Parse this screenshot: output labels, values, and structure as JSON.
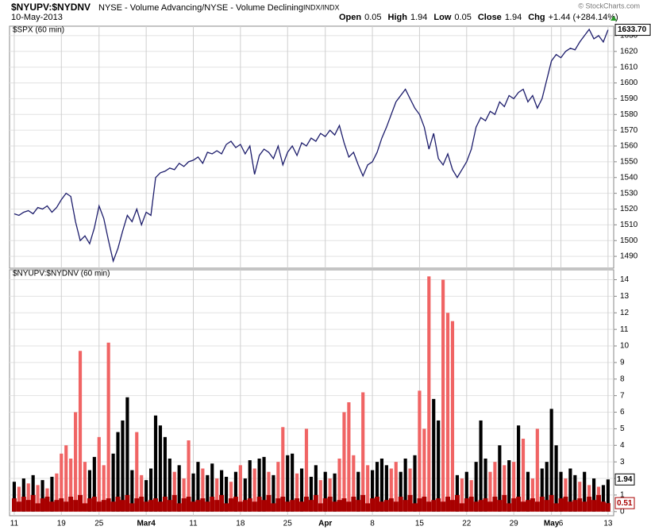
{
  "header": {
    "symbol": "$NYUPV:$NYDNV",
    "description": "NYSE - Volume Advancing/NYSE - Volume Declining",
    "exchange": "INDX/INDX",
    "date": "10-May-2013",
    "source": "© StockCharts.com",
    "quote": [
      {
        "label": "Open",
        "value": "0.05"
      },
      {
        "label": "High",
        "value": "1.94"
      },
      {
        "label": "Low",
        "value": "0.05"
      },
      {
        "label": "Close",
        "value": "1.94"
      },
      {
        "label": "Chg",
        "value": "+1.44 (+284.14%)"
      }
    ]
  },
  "chart_data": [
    {
      "type": "line",
      "title": "$SPX (60 min)",
      "color": "#1c1c6b",
      "last_label": "1633.70",
      "x": [
        0,
        0.5,
        1,
        1.5,
        2,
        2.5,
        3,
        3.5,
        4,
        4.5,
        5,
        5.5,
        6,
        6.5,
        7,
        7.5,
        8,
        8.5,
        9,
        9.5,
        10,
        10.5,
        11,
        11.5,
        12,
        12.5,
        13,
        13.5,
        14,
        14.5,
        15,
        15.5,
        16,
        16.5,
        17,
        17.5,
        18,
        18.5,
        19,
        19.5,
        20,
        20.5,
        21,
        21.5,
        22,
        22.5,
        23,
        23.5,
        24,
        24.5,
        25,
        25.5,
        26,
        26.5,
        27,
        27.5,
        28,
        28.5,
        29,
        29.5,
        30,
        30.5,
        31,
        31.5,
        32,
        32.5,
        33,
        33.5,
        34,
        34.5,
        35,
        35.5,
        36,
        36.5,
        37,
        37.5,
        38,
        38.5,
        39,
        39.5,
        40,
        40.5,
        41,
        41.5,
        42,
        42.5,
        43,
        43.5,
        44,
        44.5,
        45,
        45.5,
        46,
        46.5,
        47,
        47.5,
        48,
        48.5,
        49,
        49.5,
        50,
        50.5,
        51,
        51.5,
        52,
        52.5,
        53,
        53.5,
        54,
        54.5,
        55,
        55.5,
        56,
        56.5,
        57,
        57.5,
        58,
        58.5,
        59,
        59.5,
        60,
        60.5,
        61,
        61.5,
        62,
        62.5,
        63
      ],
      "values": [
        1517,
        1516,
        1518,
        1519,
        1517,
        1521,
        1520,
        1522,
        1518,
        1521,
        1526,
        1530,
        1528,
        1512,
        1500,
        1503,
        1498,
        1508,
        1522,
        1514,
        1500,
        1487,
        1495,
        1506,
        1516,
        1512,
        1520,
        1510,
        1518,
        1516,
        1540,
        1543,
        1544,
        1546,
        1545,
        1549,
        1547,
        1550,
        1551,
        1553,
        1549,
        1556,
        1555,
        1557,
        1555,
        1561,
        1563,
        1559,
        1561,
        1555,
        1560,
        1542,
        1554,
        1558,
        1556,
        1552,
        1560,
        1548,
        1556,
        1560,
        1554,
        1562,
        1560,
        1565,
        1563,
        1568,
        1566,
        1570,
        1567,
        1573,
        1562,
        1553,
        1556,
        1548,
        1541,
        1548,
        1550,
        1556,
        1565,
        1572,
        1580,
        1588,
        1592,
        1596,
        1590,
        1584,
        1580,
        1572,
        1558,
        1568,
        1552,
        1548,
        1555,
        1545,
        1540,
        1545,
        1550,
        1558,
        1572,
        1578,
        1576,
        1582,
        1580,
        1588,
        1585,
        1592,
        1590,
        1594,
        1596,
        1588,
        1592,
        1584,
        1590,
        1602,
        1614,
        1618,
        1616,
        1620,
        1622,
        1621,
        1626,
        1630,
        1634,
        1628,
        1630,
        1626,
        1633.7
      ],
      "xlim": [
        -0.5,
        63.6
      ],
      "ylim": [
        1482.5,
        1636
      ],
      "yticks": [
        1490,
        1500,
        1510,
        1520,
        1530,
        1540,
        1550,
        1560,
        1570,
        1580,
        1590,
        1600,
        1610,
        1620,
        1630
      ],
      "grid": true
    },
    {
      "type": "bar",
      "title": "$NYUPV:$NYDNV (60 min)",
      "palette": {
        "k": "#000000",
        "r": "#f06464"
      },
      "xlim": [
        -0.5,
        63.6
      ],
      "ylim": [
        -0.25,
        14.6
      ],
      "yticks": [
        0,
        1,
        2,
        3,
        4,
        5,
        6,
        7,
        8,
        9,
        10,
        11,
        12,
        13,
        14
      ],
      "grid": true,
      "xticks": [
        {
          "value": 0,
          "label": "11"
        },
        {
          "value": 5,
          "label": "19"
        },
        {
          "value": 9,
          "label": "25"
        },
        {
          "value": 14,
          "label": "Mar4"
        },
        {
          "value": 19,
          "label": "11"
        },
        {
          "value": 24,
          "label": "18"
        },
        {
          "value": 29,
          "label": "25"
        },
        {
          "value": 33,
          "label": "Apr"
        },
        {
          "value": 38,
          "label": "8"
        },
        {
          "value": 43,
          "label": "15"
        },
        {
          "value": 48,
          "label": "22"
        },
        {
          "value": 53,
          "label": "29"
        },
        {
          "value": 57,
          "label": "May"
        },
        {
          "value": 58,
          "label": "6"
        },
        {
          "value": 63,
          "label": "13"
        }
      ],
      "series": [
        {
          "bar_colors": [
            "k",
            "r",
            "k",
            "r",
            "k",
            "r",
            "k",
            "r",
            "k",
            "r",
            "r",
            "r",
            "r",
            "r",
            "r",
            "r",
            "k",
            "k",
            "r",
            "r",
            "r",
            "k",
            "k",
            "k",
            "k",
            "k",
            "r",
            "r",
            "k",
            "k",
            "k",
            "k",
            "k",
            "k",
            "r",
            "k",
            "r",
            "r",
            "k",
            "k",
            "r",
            "k",
            "k",
            "r",
            "k",
            "k",
            "r",
            "k",
            "r",
            "k",
            "k",
            "r",
            "k",
            "k",
            "r",
            "k",
            "r",
            "r",
            "k",
            "k",
            "r",
            "k",
            "r",
            "k",
            "k",
            "r",
            "k",
            "r",
            "k",
            "r",
            "r",
            "r",
            "r",
            "k",
            "r",
            "r",
            "k",
            "k",
            "k",
            "k",
            "r",
            "r",
            "k",
            "k",
            "r",
            "k",
            "r",
            "r",
            "r",
            "k",
            "k",
            "r",
            "r",
            "r",
            "k",
            "r",
            "k",
            "r",
            "k",
            "k",
            "k",
            "r",
            "r",
            "k",
            "r",
            "k",
            "r",
            "k",
            "r",
            "k",
            "r",
            "r",
            "k",
            "k",
            "k",
            "k",
            "k",
            "r",
            "k",
            "k",
            "r",
            "k",
            "r",
            "k",
            "r",
            "k",
            "k"
          ],
          "values": [
            1.8,
            1.5,
            2.0,
            1.7,
            2.2,
            1.6,
            1.9,
            1.4,
            2.1,
            2.3,
            3.5,
            4.0,
            3.2,
            6.0,
            9.7,
            3.0,
            2.5,
            3.3,
            4.5,
            2.8,
            10.2,
            3.5,
            4.8,
            5.5,
            6.9,
            2.5,
            4.8,
            2.2,
            1.9,
            2.6,
            5.8,
            5.2,
            4.5,
            3.2,
            2.4,
            2.8,
            2.0,
            4.3,
            2.3,
            3.0,
            2.6,
            2.2,
            2.9,
            2.0,
            2.5,
            2.1,
            1.8,
            2.4,
            2.8,
            2.0,
            3.1,
            2.6,
            3.2,
            3.3,
            2.4,
            2.2,
            3.0,
            5.1,
            3.4,
            3.5,
            2.3,
            2.6,
            5.0,
            2.1,
            2.8,
            1.9,
            2.4,
            2.0,
            2.3,
            3.2,
            6.0,
            6.6,
            3.4,
            2.4,
            7.2,
            2.8,
            2.5,
            3.0,
            3.2,
            2.8,
            2.6,
            3.0,
            2.4,
            3.2,
            2.6,
            3.4,
            7.3,
            5.0,
            14.2,
            6.8,
            5.5,
            14.0,
            12.0,
            11.5,
            2.2,
            2.0,
            2.4,
            1.9,
            3.0,
            5.5,
            3.2,
            2.4,
            3.0,
            4.0,
            2.8,
            3.1,
            3.0,
            5.2,
            4.4,
            2.4,
            2.0,
            5.0,
            2.6,
            3.0,
            6.2,
            4.0,
            2.4,
            2.0,
            2.6,
            2.2,
            1.8,
            2.4,
            1.6,
            2.0,
            1.5,
            1.6,
            1.94
          ]
        },
        {
          "color": "#a80000",
          "values": [
            0.8,
            0.6,
            0.9,
            0.7,
            1.0,
            0.5,
            0.8,
            0.9,
            0.6,
            0.7,
            0.8,
            0.6,
            0.9,
            0.7,
            1.0,
            0.5,
            0.8,
            0.9,
            0.6,
            0.7,
            0.8,
            0.6,
            0.9,
            0.7,
            1.0,
            0.5,
            0.8,
            0.9,
            0.6,
            0.7,
            0.8,
            0.6,
            0.9,
            0.7,
            1.0,
            0.5,
            0.8,
            0.9,
            0.6,
            0.7,
            0.8,
            0.6,
            0.9,
            0.7,
            1.0,
            0.5,
            0.8,
            0.9,
            0.6,
            0.7,
            0.8,
            0.6,
            0.9,
            0.7,
            1.0,
            0.5,
            0.8,
            0.9,
            0.6,
            0.7,
            0.8,
            0.6,
            0.9,
            0.7,
            1.0,
            0.5,
            0.8,
            0.9,
            0.6,
            0.7,
            0.8,
            0.6,
            0.9,
            0.7,
            1.0,
            0.5,
            0.8,
            0.9,
            0.6,
            0.7,
            0.8,
            0.6,
            0.9,
            0.7,
            1.0,
            0.5,
            0.8,
            0.9,
            0.6,
            0.7,
            0.8,
            0.6,
            0.9,
            0.7,
            1.0,
            0.5,
            0.8,
            0.9,
            0.6,
            0.7,
            0.8,
            0.6,
            0.9,
            0.7,
            1.0,
            0.5,
            0.8,
            0.9,
            0.6,
            0.7,
            0.8,
            0.6,
            0.9,
            0.7,
            1.0,
            0.5,
            0.8,
            0.9,
            0.6,
            0.7,
            0.8,
            0.6,
            0.9,
            0.7,
            1.0,
            0.6,
            0.51
          ]
        }
      ]
    }
  ]
}
